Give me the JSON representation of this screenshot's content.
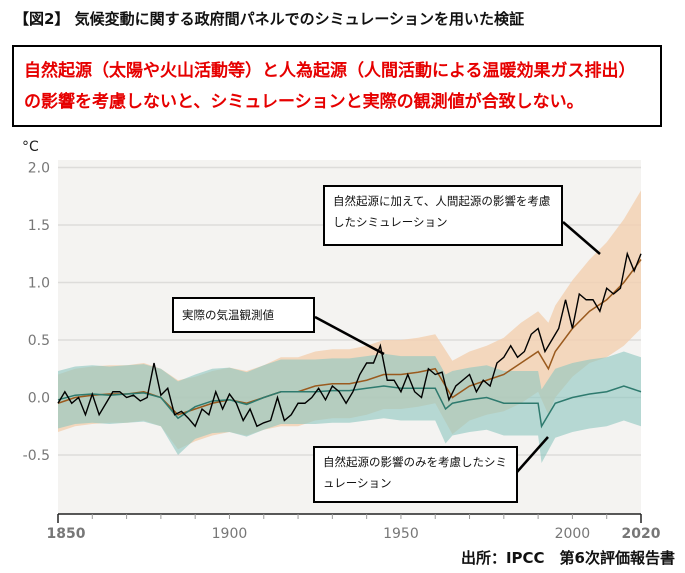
{
  "title": "【図2】 気候変動に関する政府間パネルでのシミュレーションを用いた検証",
  "headline": "自然起源（太陽や火山活動等）と人為起源（人間活動による温暖効果ガス排出）の影響を考慮しないと、シミュレーションと実際の観測値が合致しない。",
  "source": "出所：IPCC　第6次評価報告書",
  "colors": {
    "human": "#9a5a1e",
    "human_band": "#f2cfb0",
    "natural": "#2e7a6e",
    "natural_band": "#8cc6bf",
    "observed": "#000000",
    "background": "#f4f3f1"
  },
  "chart_data": {
    "type": "line",
    "ylabel": "°C",
    "xlim": [
      1850,
      2020
    ],
    "ylim": [
      -1.0,
      2.0
    ],
    "yticks": [
      "2.0",
      "1.5",
      "1.0",
      "0.5",
      "0.0",
      "-0.5"
    ],
    "ytick_values": [
      2.0,
      1.5,
      1.0,
      0.5,
      0.0,
      -0.5
    ],
    "xticks": [
      "1850",
      "1900",
      "1950",
      "2000",
      "2020"
    ],
    "xtick_values": [
      1850,
      1900,
      1950,
      2000,
      2020
    ],
    "grid": true,
    "annotations": {
      "human": "自然起源に加えて、人間起源の影響を考慮したシミュレーション",
      "observed": "実際の気温観測値",
      "natural": "自然起源の影響のみを考慮したシミュレーション"
    },
    "series": [
      {
        "name": "human_natural_sim",
        "x": [
          1850,
          1855,
          1860,
          1865,
          1870,
          1875,
          1880,
          1885,
          1890,
          1895,
          1900,
          1905,
          1910,
          1915,
          1920,
          1925,
          1930,
          1935,
          1940,
          1945,
          1950,
          1955,
          1960,
          1965,
          1970,
          1975,
          1980,
          1985,
          1990,
          1993,
          1995,
          2000,
          2005,
          2010,
          2015,
          2020
        ],
        "mean": [
          -0.05,
          0.0,
          0.02,
          0.03,
          0.03,
          0.05,
          0.0,
          -0.15,
          -0.1,
          -0.05,
          -0.02,
          -0.05,
          0.0,
          0.05,
          0.05,
          0.1,
          0.12,
          0.12,
          0.15,
          0.2,
          0.2,
          0.22,
          0.25,
          0.0,
          0.1,
          0.15,
          0.2,
          0.3,
          0.4,
          0.25,
          0.4,
          0.6,
          0.75,
          0.85,
          1.0,
          1.2
        ],
        "spread": [
          0.25,
          0.25,
          0.25,
          0.25,
          0.25,
          0.25,
          0.25,
          0.3,
          0.28,
          0.28,
          0.28,
          0.28,
          0.28,
          0.3,
          0.3,
          0.3,
          0.3,
          0.3,
          0.3,
          0.3,
          0.3,
          0.3,
          0.3,
          0.32,
          0.3,
          0.3,
          0.32,
          0.35,
          0.35,
          0.4,
          0.4,
          0.42,
          0.45,
          0.5,
          0.55,
          0.6
        ]
      },
      {
        "name": "natural_only_sim",
        "x": [
          1850,
          1855,
          1860,
          1865,
          1870,
          1875,
          1880,
          1885,
          1890,
          1895,
          1900,
          1905,
          1910,
          1915,
          1920,
          1925,
          1930,
          1935,
          1940,
          1945,
          1950,
          1955,
          1960,
          1963,
          1965,
          1970,
          1975,
          1980,
          1985,
          1990,
          1991,
          1995,
          2000,
          2005,
          2010,
          2015,
          2020
        ],
        "mean": [
          -0.02,
          0.02,
          0.03,
          0.02,
          0.03,
          0.04,
          0.0,
          -0.18,
          -0.08,
          -0.03,
          -0.02,
          -0.06,
          0.0,
          0.05,
          0.05,
          0.05,
          0.06,
          0.06,
          0.08,
          0.1,
          0.08,
          0.08,
          0.08,
          -0.1,
          -0.05,
          -0.02,
          0.0,
          -0.05,
          -0.05,
          -0.05,
          -0.25,
          -0.05,
          0.0,
          0.03,
          0.05,
          0.1,
          0.05
        ],
        "spread": [
          0.25,
          0.25,
          0.25,
          0.25,
          0.25,
          0.25,
          0.25,
          0.32,
          0.28,
          0.28,
          0.28,
          0.28,
          0.28,
          0.28,
          0.28,
          0.28,
          0.28,
          0.28,
          0.28,
          0.28,
          0.28,
          0.28,
          0.28,
          0.3,
          0.28,
          0.28,
          0.28,
          0.28,
          0.28,
          0.28,
          0.32,
          0.3,
          0.3,
          0.3,
          0.3,
          0.3,
          0.3
        ]
      },
      {
        "name": "observed",
        "x": [
          1850,
          1852,
          1854,
          1856,
          1858,
          1860,
          1862,
          1864,
          1866,
          1868,
          1870,
          1872,
          1874,
          1876,
          1878,
          1880,
          1882,
          1884,
          1886,
          1888,
          1890,
          1892,
          1894,
          1896,
          1898,
          1900,
          1902,
          1904,
          1906,
          1908,
          1910,
          1912,
          1914,
          1916,
          1918,
          1920,
          1922,
          1924,
          1926,
          1928,
          1930,
          1932,
          1934,
          1936,
          1938,
          1940,
          1942,
          1944,
          1946,
          1948,
          1950,
          1952,
          1954,
          1956,
          1958,
          1960,
          1962,
          1964,
          1966,
          1968,
          1970,
          1972,
          1974,
          1976,
          1978,
          1980,
          1982,
          1984,
          1986,
          1988,
          1990,
          1992,
          1994,
          1996,
          1998,
          2000,
          2002,
          2004,
          2006,
          2008,
          2010,
          2012,
          2014,
          2016,
          2018,
          2020
        ],
        "values": [
          -0.05,
          0.05,
          -0.05,
          0.0,
          -0.15,
          0.03,
          -0.15,
          -0.05,
          0.05,
          0.05,
          0.0,
          0.02,
          -0.03,
          0.0,
          0.3,
          0.02,
          0.08,
          -0.15,
          -0.12,
          -0.18,
          -0.25,
          -0.1,
          -0.15,
          0.05,
          -0.1,
          0.03,
          -0.05,
          -0.2,
          -0.1,
          -0.25,
          -0.22,
          -0.2,
          0.0,
          -0.2,
          -0.15,
          -0.05,
          -0.05,
          0.0,
          0.08,
          -0.02,
          0.1,
          0.05,
          -0.05,
          0.05,
          0.2,
          0.3,
          0.3,
          0.45,
          0.15,
          0.15,
          0.05,
          0.2,
          0.05,
          0.0,
          0.25,
          0.2,
          0.22,
          -0.02,
          0.1,
          0.15,
          0.2,
          0.05,
          0.15,
          0.1,
          0.3,
          0.35,
          0.45,
          0.35,
          0.4,
          0.55,
          0.6,
          0.4,
          0.5,
          0.6,
          0.85,
          0.6,
          0.9,
          0.85,
          0.85,
          0.75,
          0.95,
          0.9,
          0.95,
          1.25,
          1.1,
          1.25
        ]
      }
    ]
  }
}
